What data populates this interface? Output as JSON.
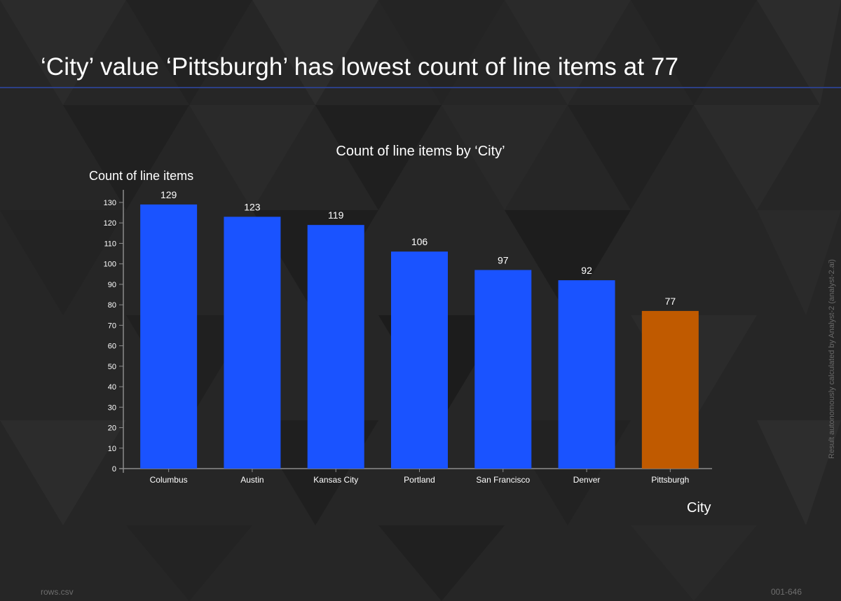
{
  "headline": "‘City’ value ‘Pittsburgh’ has lowest count of line items at 77",
  "attribution": "Result autonomously calculated by Analyst-2 (analyst-2.ai)",
  "footer": {
    "source_file": "rows.csv",
    "slide_id": "001-646"
  },
  "colors": {
    "background": "#262626",
    "bar": "#1a53ff",
    "highlight_bar": "#c05a00",
    "headline_rule": "#2c3f86",
    "axis": "#8c8c8c"
  },
  "chart_data": {
    "type": "bar",
    "title": "Count of line items by ‘City’",
    "xlabel": "City",
    "ylabel": "Count of line items",
    "categories": [
      "Columbus",
      "Austin",
      "Kansas City",
      "Portland",
      "San Francisco",
      "Denver",
      "Pittsburgh"
    ],
    "values": [
      129,
      123,
      119,
      106,
      97,
      92,
      77
    ],
    "highlight_category": "Pittsburgh",
    "ylim": [
      0,
      130
    ],
    "yticks": [
      0,
      10,
      20,
      30,
      40,
      50,
      60,
      70,
      80,
      90,
      100,
      110,
      120,
      130
    ],
    "data_labels": true,
    "grid": false,
    "legend": "none"
  }
}
